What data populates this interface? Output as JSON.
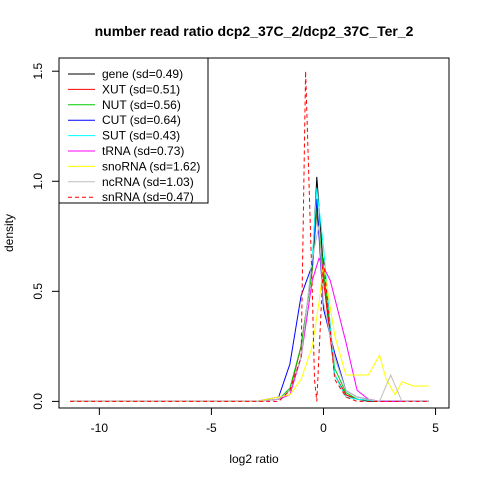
{
  "chart_data": {
    "type": "line",
    "title": "number read ratio dcp2_37C_2/dcp2_37C_Ter_2",
    "xlabel": "log2 ratio",
    "ylabel": "density",
    "xlim": [
      -11.8,
      5.6
    ],
    "ylim": [
      -0.03,
      1.56
    ],
    "xticks": [
      -10,
      -5,
      0,
      5
    ],
    "yticks": [
      0.0,
      0.5,
      1.0,
      1.5
    ],
    "xtick_labels": [
      "-10",
      "-5",
      "0",
      "5"
    ],
    "ytick_labels": [
      "0.0",
      "0.5",
      "1.0",
      "1.5"
    ],
    "grid": false,
    "legend_position": "top-left",
    "series": [
      {
        "name": "gene (sd=0.49)",
        "color": "#000000",
        "dash": false,
        "x": [
          -11.3,
          -3.0,
          -2.0,
          -1.5,
          -1.0,
          -0.5,
          -0.3,
          0.0,
          0.5,
          1.0,
          1.5,
          2.0,
          2.5,
          3.0,
          4.7
        ],
        "y": [
          0,
          0,
          0.01,
          0.05,
          0.25,
          0.6,
          1.02,
          0.6,
          0.12,
          0.03,
          0.01,
          0,
          0,
          0,
          0
        ]
      },
      {
        "name": "XUT (sd=0.51)",
        "color": "#ff0000",
        "dash": false,
        "x": [
          -11.3,
          -3.0,
          -2.0,
          -1.5,
          -1.0,
          -0.5,
          -0.3,
          0.0,
          0.5,
          1.0,
          1.5,
          2.5,
          4.7
        ],
        "y": [
          0,
          0,
          0.01,
          0.05,
          0.25,
          0.6,
          0.86,
          0.55,
          0.12,
          0.03,
          0.01,
          0,
          0
        ]
      },
      {
        "name": "NUT (sd=0.56)",
        "color": "#00cc00",
        "dash": false,
        "x": [
          -11.3,
          -3.0,
          -2.0,
          -1.5,
          -1.0,
          -0.5,
          -0.3,
          0.0,
          0.5,
          1.0,
          1.5,
          2.5,
          4.7
        ],
        "y": [
          0,
          0,
          0.01,
          0.06,
          0.25,
          0.6,
          0.88,
          0.6,
          0.15,
          0.04,
          0.01,
          0,
          0
        ]
      },
      {
        "name": "CUT (sd=0.64)",
        "color": "#0000ff",
        "dash": false,
        "x": [
          -11.3,
          -3.0,
          -2.0,
          -1.5,
          -1.0,
          -0.5,
          -0.3,
          0.0,
          0.5,
          1.0,
          1.5,
          2.5,
          4.7
        ],
        "y": [
          0,
          0,
          0.02,
          0.17,
          0.48,
          0.62,
          0.92,
          0.42,
          0.22,
          0.05,
          0.02,
          0,
          0
        ]
      },
      {
        "name": "SUT (sd=0.43)",
        "color": "#00ffff",
        "dash": false,
        "x": [
          -11.3,
          -3.0,
          -2.0,
          -1.5,
          -1.0,
          -0.5,
          -0.3,
          0.0,
          0.5,
          1.0,
          1.5,
          2.5,
          4.7
        ],
        "y": [
          0,
          0,
          0.01,
          0.05,
          0.2,
          0.65,
          0.97,
          0.7,
          0.12,
          0.02,
          0.01,
          0,
          0
        ]
      },
      {
        "name": "tRNA (sd=0.73)",
        "color": "#ff00ff",
        "dash": false,
        "x": [
          -11.3,
          -3.0,
          -2.0,
          -1.5,
          -1.0,
          -0.5,
          -0.2,
          0.3,
          1.0,
          1.5,
          2.0,
          2.5,
          4.7
        ],
        "y": [
          0,
          0,
          0.01,
          0.03,
          0.2,
          0.55,
          0.65,
          0.55,
          0.27,
          0.05,
          0.01,
          0,
          0
        ]
      },
      {
        "name": "snoRNA (sd=1.62)",
        "color": "#ffff00",
        "dash": false,
        "x": [
          -11.3,
          -3.0,
          -2.5,
          -2.0,
          -1.5,
          -1.0,
          -0.5,
          -0.2,
          0.0,
          0.5,
          1.0,
          1.5,
          2.0,
          2.5,
          2.8,
          3.2,
          3.5,
          4.0,
          4.7
        ],
        "y": [
          0,
          0,
          0.01,
          0.02,
          0.03,
          0.1,
          0.25,
          0.45,
          0.62,
          0.3,
          0.12,
          0.12,
          0.12,
          0.21,
          0.1,
          0.03,
          0.09,
          0.07,
          0.07
        ]
      },
      {
        "name": "ncRNA (sd=1.03)",
        "color": "#bebebe",
        "dash": false,
        "x": [
          -11.3,
          -3.0,
          -2.0,
          -1.5,
          -1.0,
          -0.5,
          -0.2,
          0.0,
          0.5,
          1.0,
          1.5,
          2.0,
          2.5,
          3.0,
          3.5,
          4.7
        ],
        "y": [
          0,
          0,
          0.01,
          0.05,
          0.2,
          0.65,
          0.8,
          0.45,
          0.2,
          0.05,
          0.02,
          0.01,
          0,
          0.12,
          0,
          0
        ]
      },
      {
        "name": "snRNA (sd=0.47)",
        "color": "#ff0000",
        "dash": true,
        "x": [
          -11.3,
          -3.0,
          -2.0,
          -1.5,
          -1.0,
          -0.8,
          -0.5,
          -0.4,
          -0.3,
          0.0,
          0.5,
          1.0,
          1.5,
          4.7
        ],
        "y": [
          0,
          0,
          0,
          0.05,
          0.2,
          1.5,
          0.5,
          0.1,
          0.0,
          0.65,
          0.1,
          0.02,
          0,
          0
        ]
      }
    ]
  }
}
